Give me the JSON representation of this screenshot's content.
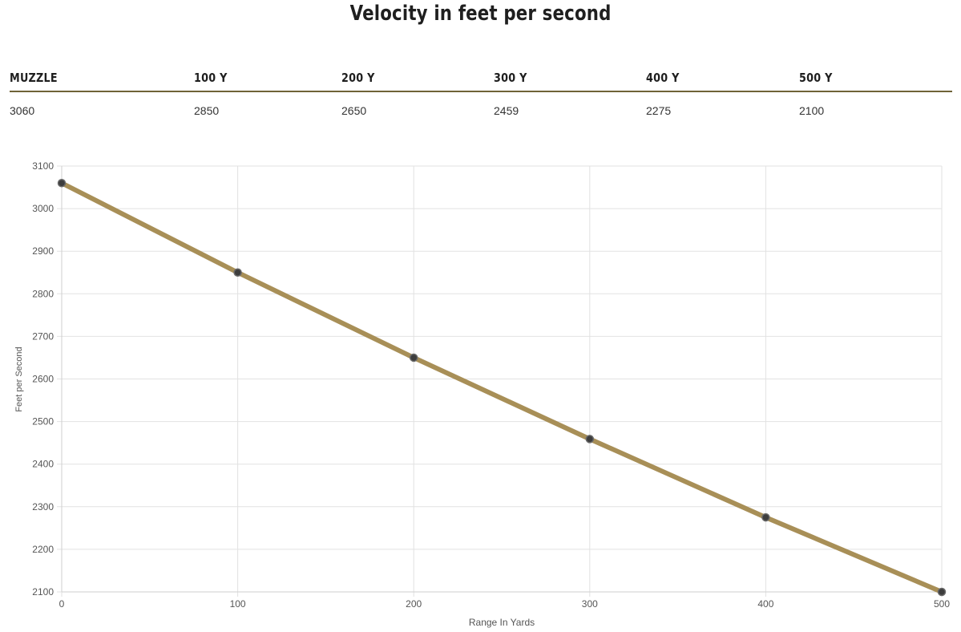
{
  "title": "Velocity in feet per second",
  "table": {
    "headers": [
      "MUZZLE",
      "100 Y",
      "200 Y",
      "300 Y",
      "400 Y",
      "500 Y"
    ],
    "values": [
      "3060",
      "2850",
      "2650",
      "2459",
      "2275",
      "2100"
    ]
  },
  "chart_data": {
    "type": "line",
    "x": [
      0,
      100,
      200,
      300,
      400,
      500
    ],
    "series": [
      {
        "values": [
          3060,
          2850,
          2650,
          2459,
          2275,
          2100
        ]
      }
    ],
    "xlabel": "Range In Yards",
    "ylabel": "Feet per Second",
    "xlim": [
      0,
      500
    ],
    "ylim": [
      2100,
      3100
    ],
    "x_ticks": [
      0,
      100,
      200,
      300,
      400,
      500
    ],
    "y_ticks": [
      2100,
      2200,
      2300,
      2400,
      2500,
      2600,
      2700,
      2800,
      2900,
      3000,
      3100
    ],
    "grid": true,
    "legend": "none",
    "colors": {
      "line": "#a88f57",
      "point": "#3d3d3d",
      "grid": "#e2e2e2"
    }
  }
}
